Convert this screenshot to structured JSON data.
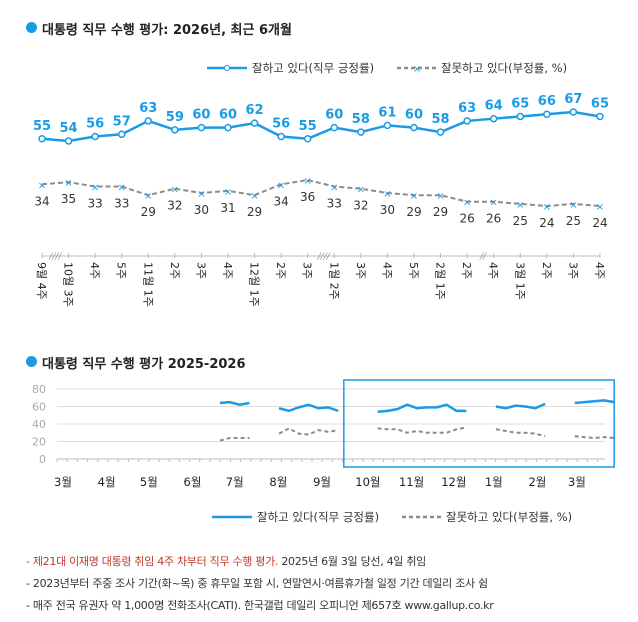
{
  "colors": {
    "approve": "#1a9be6",
    "disapprove": "#8c8c8c",
    "highlight": "#1a9be6"
  },
  "chart_data": [
    {
      "type": "line",
      "title": "대통령 직무 수행 평가: 2026년, 최근 6개월",
      "categories": [
        "9월 4주",
        "10월 3주",
        "4주",
        "5주",
        "11월 1주",
        "2주",
        "3주",
        "4주",
        "12월 1주",
        "2주",
        "3주",
        "1월 2주",
        "3주",
        "4주",
        "5주",
        "2월 1주",
        "2주",
        "4주",
        "3월 1주",
        "2주",
        "3주",
        "4주"
      ],
      "series": [
        {
          "name": "잘하고 있다(직무 긍정률)",
          "values": [
            55,
            54,
            56,
            57,
            63,
            59,
            60,
            60,
            62,
            56,
            55,
            60,
            58,
            61,
            60,
            58,
            63,
            64,
            65,
            66,
            67,
            65
          ]
        },
        {
          "name": "잘못하고 있다(부정률, %)",
          "values": [
            34,
            35,
            33,
            33,
            29,
            32,
            30,
            31,
            29,
            34,
            36,
            33,
            32,
            30,
            29,
            29,
            26,
            26,
            25,
            24,
            25,
            24
          ]
        }
      ],
      "axis_breaks": [
        "////",
        "////",
        "//"
      ]
    },
    {
      "type": "line",
      "title": "대통령 직무 수행 평가 2025-2026",
      "yticks": [
        0,
        20,
        40,
        60,
        80
      ],
      "ylim": [
        0,
        80
      ],
      "xticks": [
        "3월",
        "4월",
        "5월",
        "6월",
        "7월",
        "8월",
        "9월",
        "10월",
        "11월",
        "12월",
        "1월",
        "2월",
        "3월"
      ],
      "segments": [
        {
          "start": "2025-06-24",
          "approve": [
            64,
            65,
            62,
            64
          ],
          "disapprove": [
            21,
            24,
            24,
            24
          ]
        },
        {
          "start": "2025-08-05",
          "approve": [
            58,
            55,
            59,
            62,
            58,
            59,
            55
          ],
          "disapprove": [
            29,
            35,
            29,
            28,
            33,
            31,
            33
          ]
        },
        {
          "start": "2025-10-14",
          "approve": [
            54,
            55,
            57,
            62,
            58,
            59,
            59,
            62,
            55,
            55
          ],
          "disapprove": [
            35,
            34,
            34,
            30,
            32,
            30,
            30,
            30,
            34,
            36
          ]
        },
        {
          "start": "2026-01-06",
          "approve": [
            60,
            58,
            61,
            60,
            58,
            63
          ],
          "disapprove": [
            34,
            32,
            30,
            30,
            29,
            26
          ]
        },
        {
          "start": "2026-03-03",
          "approve": [
            64,
            65,
            66,
            67,
            65
          ],
          "disapprove": [
            26,
            25,
            24,
            25,
            24
          ]
        }
      ],
      "series_names": [
        "잘하고 있다(직무 긍정률)",
        "잘못하고 있다(부정률, %)"
      ],
      "highlight_range": [
        "2025-09-20",
        "2026-03-31"
      ]
    }
  ],
  "notes": [
    {
      "red": "- 제21대 이재명 대통령 취임 4주 차부터 직무 수행 평가.",
      "rest": " 2025년 6월 3일 당선, 4일 취임"
    },
    {
      "red": "",
      "rest": "- 2023년부터 주중 조사 기간(화~목) 중 휴무일 포함 시, 연말연시·여름휴가철 일정 기간 데일리 조사 쉼"
    },
    {
      "red": "",
      "rest": "- 매주 전국 유권자 약 1,000명 전화조사(CATI). 한국갤럽 데일리 오피니언 제657호 www.gallup.co.kr"
    }
  ]
}
